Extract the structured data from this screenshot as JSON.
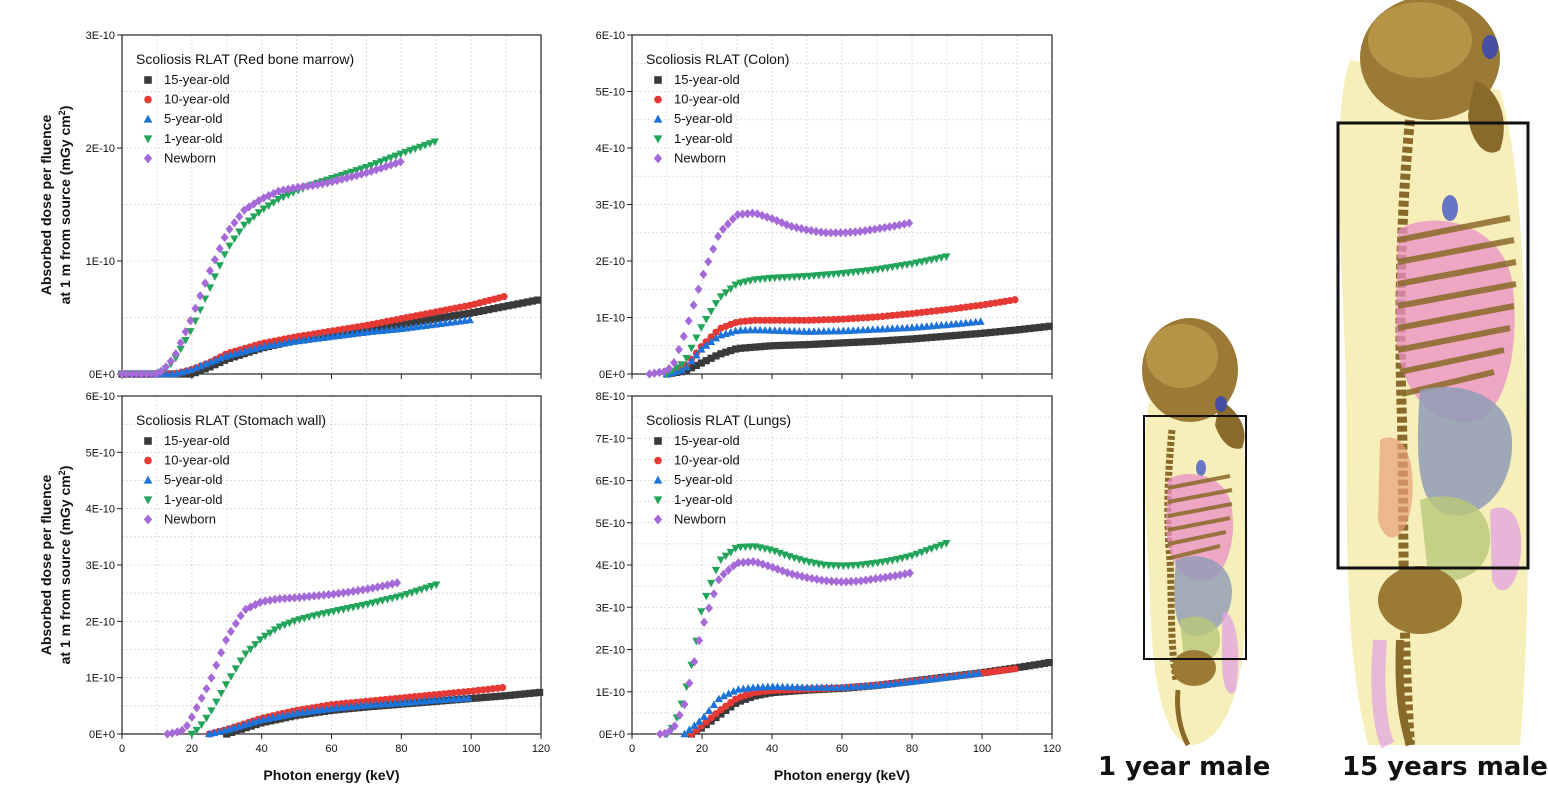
{
  "series_names": [
    "15-year-old",
    "10-year-old",
    "5-year-old",
    "1-year-old",
    "Newborn"
  ],
  "series_colors": [
    "#3a3a3a",
    "#e53935",
    "#1e73d8",
    "#22a45a",
    "#a66ad8"
  ],
  "series_markers": [
    "square",
    "circle",
    "triangle-up",
    "triangle-down",
    "diamond"
  ],
  "x_axis_label": "Photon energy (keV)",
  "y_axis_label_line1": "Absorbed dose per fluence",
  "y_axis_label_line2": "at 1 m from source (mGy cm",
  "y_axis_label_sup": "2",
  "y_axis_label_close": ")",
  "captions": {
    "left": "1 year male",
    "right": "15 years male"
  },
  "phantom_colors": {
    "skin": "#f3eaa3",
    "bone": "#8a6a2a",
    "lung": "#e98fc5",
    "organ": "#8f9bb5",
    "gut": "#b9c879",
    "box": "#111111"
  },
  "chart_data": [
    {
      "type": "scatter",
      "title": "Scoliosis RLAT (Red bone marrow)",
      "xlim": [
        0,
        120
      ],
      "ylim": [
        0,
        3e-10
      ],
      "xticks": [
        0,
        20,
        40,
        60,
        80,
        100,
        120
      ],
      "yticks": [
        0,
        1e-10,
        2e-10,
        3e-10
      ],
      "ytick_labels": [
        "0E+0",
        "1E-10",
        "2E-10",
        "3E-10"
      ],
      "series": [
        {
          "name": "15-year-old",
          "x": [
            0,
            15,
            20,
            25,
            30,
            40,
            50,
            60,
            70,
            80,
            90,
            100,
            110,
            120
          ],
          "values": [
            0,
            0,
            0,
            6e-12,
            1.3e-11,
            2.3e-11,
            3e-11,
            3.5e-11,
            4e-11,
            4.4e-11,
            4.9e-11,
            5.4e-11,
            6e-11,
            6.6e-11
          ]
        },
        {
          "name": "10-year-old",
          "x": [
            10,
            15,
            20,
            25,
            30,
            40,
            50,
            60,
            70,
            80,
            90,
            100,
            110
          ],
          "values": [
            0,
            0,
            4e-12,
            1e-11,
            1.8e-11,
            2.7e-11,
            3.3e-11,
            3.8e-11,
            4.3e-11,
            4.9e-11,
            5.5e-11,
            6.1e-11,
            6.9e-11
          ]
        },
        {
          "name": "5-year-old",
          "x": [
            10,
            15,
            20,
            25,
            30,
            40,
            50,
            60,
            70,
            80,
            90,
            100
          ],
          "values": [
            0,
            0,
            4e-12,
            1e-11,
            1.6e-11,
            2.4e-11,
            2.9e-11,
            3.3e-11,
            3.7e-11,
            4e-11,
            4.4e-11,
            4.8e-11
          ]
        },
        {
          "name": "1-year-old",
          "x": [
            0,
            5,
            10,
            12,
            15,
            20,
            25,
            30,
            35,
            40,
            45,
            50,
            55,
            60,
            70,
            80,
            90
          ],
          "values": [
            0,
            0,
            0,
            3e-12,
            1.2e-11,
            4e-11,
            7.5e-11,
            1.1e-10,
            1.32e-10,
            1.45e-10,
            1.55e-10,
            1.62e-10,
            1.68e-10,
            1.73e-10,
            1.83e-10,
            1.95e-10,
            2.06e-10
          ]
        },
        {
          "name": "Newborn",
          "x": [
            0,
            5,
            10,
            12,
            15,
            20,
            25,
            30,
            35,
            40,
            45,
            50,
            55,
            60,
            65,
            70,
            75,
            80
          ],
          "values": [
            0,
            0,
            0,
            4e-12,
            1.5e-11,
            5e-11,
            9e-11,
            1.25e-10,
            1.45e-10,
            1.55e-10,
            1.62e-10,
            1.65e-10,
            1.67e-10,
            1.7e-10,
            1.74e-10,
            1.78e-10,
            1.83e-10,
            1.88e-10
          ]
        }
      ]
    },
    {
      "type": "scatter",
      "title": "Scoliosis RLAT (Colon)",
      "xlim": [
        0,
        120
      ],
      "ylim": [
        0,
        6e-10
      ],
      "xticks": [
        0,
        20,
        40,
        60,
        80,
        100,
        120
      ],
      "yticks": [
        0,
        1e-10,
        2e-10,
        3e-10,
        4e-10,
        5e-10,
        6e-10
      ],
      "ytick_labels": [
        "0E+0",
        "1E-10",
        "2E-10",
        "3E-10",
        "4E-10",
        "5E-10",
        "6E-10"
      ],
      "series": [
        {
          "name": "15-year-old",
          "x": [
            10,
            15,
            20,
            25,
            30,
            40,
            50,
            60,
            70,
            80,
            90,
            100,
            110,
            120
          ],
          "values": [
            0,
            5e-12,
            2e-11,
            3.5e-11,
            4.5e-11,
            5e-11,
            5.2e-11,
            5.5e-11,
            5.8e-11,
            6.2e-11,
            6.7e-11,
            7.2e-11,
            7.8e-11,
            8.5e-11
          ]
        },
        {
          "name": "10-year-old",
          "x": [
            10,
            15,
            20,
            25,
            30,
            35,
            40,
            50,
            60,
            70,
            80,
            90,
            100,
            110
          ],
          "values": [
            0,
            1e-11,
            5e-11,
            8e-11,
            9.2e-11,
            9.5e-11,
            9.5e-11,
            9.5e-11,
            9.7e-11,
            1.01e-10,
            1.07e-10,
            1.14e-10,
            1.22e-10,
            1.32e-10
          ]
        },
        {
          "name": "5-year-old",
          "x": [
            10,
            15,
            20,
            25,
            30,
            35,
            40,
            50,
            60,
            70,
            80,
            90,
            100
          ],
          "values": [
            0,
            8e-12,
            4.5e-11,
            6.8e-11,
            7.7e-11,
            7.8e-11,
            7.7e-11,
            7.5e-11,
            7.6e-11,
            7.9e-11,
            8.2e-11,
            8.7e-11,
            9.3e-11
          ]
        },
        {
          "name": "1-year-old",
          "x": [
            10,
            15,
            20,
            25,
            30,
            35,
            40,
            50,
            60,
            70,
            80,
            90
          ],
          "values": [
            0,
            2e-11,
            8.5e-11,
            1.35e-10,
            1.6e-10,
            1.67e-10,
            1.7e-10,
            1.73e-10,
            1.78e-10,
            1.85e-10,
            1.95e-10,
            2.08e-10
          ]
        },
        {
          "name": "Newborn",
          "x": [
            5,
            10,
            12,
            15,
            20,
            25,
            30,
            35,
            40,
            45,
            50,
            55,
            60,
            65,
            70,
            75,
            80
          ],
          "values": [
            0,
            5e-12,
            2e-11,
            7e-11,
            1.7e-10,
            2.5e-10,
            2.82e-10,
            2.85e-10,
            2.75e-10,
            2.62e-10,
            2.55e-10,
            2.5e-10,
            2.5e-10,
            2.52e-10,
            2.57e-10,
            2.62e-10,
            2.68e-10
          ]
        }
      ]
    },
    {
      "type": "scatter",
      "title": "Scoliosis RLAT (Stomach wall)",
      "xlim": [
        0,
        120
      ],
      "ylim": [
        0,
        6e-10
      ],
      "xticks": [
        0,
        20,
        40,
        60,
        80,
        100,
        120
      ],
      "yticks": [
        0,
        1e-10,
        2e-10,
        3e-10,
        4e-10,
        5e-10,
        6e-10
      ],
      "ytick_labels": [
        "0E+0",
        "1E-10",
        "2E-10",
        "3E-10",
        "4E-10",
        "5E-10",
        "6E-10"
      ],
      "series": [
        {
          "name": "15-year-old",
          "x": [
            30,
            35,
            40,
            50,
            60,
            70,
            80,
            90,
            100,
            110,
            120
          ],
          "values": [
            0,
            1e-11,
            2e-11,
            3.3e-11,
            4.2e-11,
            4.8e-11,
            5.3e-11,
            5.8e-11,
            6.3e-11,
            6.8e-11,
            7.4e-11
          ]
        },
        {
          "name": "10-year-old",
          "x": [
            25,
            30,
            35,
            40,
            50,
            60,
            70,
            80,
            90,
            100,
            110
          ],
          "values": [
            0,
            8e-12,
            1.8e-11,
            2.8e-11,
            4.2e-11,
            5.2e-11,
            5.8e-11,
            6.4e-11,
            7e-11,
            7.6e-11,
            8.3e-11
          ]
        },
        {
          "name": "5-year-old",
          "x": [
            25,
            30,
            35,
            40,
            50,
            60,
            70,
            80,
            90,
            100
          ],
          "values": [
            0,
            7e-12,
            1.6e-11,
            2.5e-11,
            3.7e-11,
            4.5e-11,
            5.1e-11,
            5.5e-11,
            6e-11,
            6.4e-11
          ]
        },
        {
          "name": "1-year-old",
          "x": [
            20,
            22,
            25,
            30,
            35,
            40,
            45,
            50,
            55,
            60,
            70,
            80,
            90
          ],
          "values": [
            0,
            1e-11,
            3.5e-11,
            9e-11,
            1.4e-10,
            1.7e-10,
            1.9e-10,
            2.02e-10,
            2.1e-10,
            2.17e-10,
            2.3e-10,
            2.45e-10,
            2.65e-10
          ]
        },
        {
          "name": "Newborn",
          "x": [
            13,
            15,
            18,
            20,
            25,
            30,
            35,
            40,
            45,
            50,
            55,
            60,
            65,
            70,
            75,
            80
          ],
          "values": [
            0,
            2e-12,
            8e-12,
            3e-11,
            9e-11,
            1.7e-10,
            2.2e-10,
            2.35e-10,
            2.4e-10,
            2.42e-10,
            2.45e-10,
            2.48e-10,
            2.52e-10,
            2.57e-10,
            2.63e-10,
            2.7e-10
          ]
        }
      ]
    },
    {
      "type": "scatter",
      "title": "Scoliosis RLAT (Lungs)",
      "xlim": [
        0,
        120
      ],
      "ylim": [
        0,
        8e-10
      ],
      "xticks": [
        0,
        20,
        40,
        60,
        80,
        100,
        120
      ],
      "xtick_labels": [
        "0",
        "20",
        "40",
        "60",
        "80",
        "100",
        "120"
      ],
      "yticks": [
        0,
        1e-10,
        2e-10,
        3e-10,
        4e-10,
        5e-10,
        6e-10,
        7e-10,
        8e-10
      ],
      "ytick_labels": [
        "0E+0",
        "1E-10",
        "2E-10",
        "3E-10",
        "4E-10",
        "5E-10",
        "6E-10",
        "7E-10",
        "8E-10"
      ],
      "series": [
        {
          "name": "15-year-old",
          "x": [
            17,
            20,
            25,
            30,
            35,
            40,
            50,
            60,
            70,
            80,
            90,
            100,
            110,
            120
          ],
          "values": [
            0,
            1.5e-11,
            4.5e-11,
            7.5e-11,
            9e-11,
            9.8e-11,
            1.04e-10,
            1.08e-10,
            1.15e-10,
            1.25e-10,
            1.35e-10,
            1.45e-10,
            1.57e-10,
            1.7e-10
          ]
        },
        {
          "name": "10-year-old",
          "x": [
            17,
            20,
            25,
            30,
            35,
            40,
            50,
            60,
            70,
            80,
            90,
            100,
            110
          ],
          "values": [
            0,
            2e-11,
            5.5e-11,
            8.5e-11,
            9.8e-11,
            1.03e-10,
            1.06e-10,
            1.09e-10,
            1.15e-10,
            1.24e-10,
            1.34e-10,
            1.44e-10,
            1.55e-10
          ]
        },
        {
          "name": "5-year-old",
          "x": [
            15,
            20,
            25,
            30,
            35,
            40,
            50,
            60,
            70,
            80,
            90,
            100
          ],
          "values": [
            0,
            3.5e-11,
            8.5e-11,
            1.05e-10,
            1.1e-10,
            1.12e-10,
            1.1e-10,
            1.1e-10,
            1.15e-10,
            1.24e-10,
            1.34e-10,
            1.45e-10
          ]
        },
        {
          "name": "1-year-old",
          "x": [
            10,
            12,
            15,
            18,
            20,
            25,
            30,
            35,
            40,
            45,
            50,
            55,
            60,
            65,
            70,
            75,
            80,
            90
          ],
          "values": [
            0,
            2e-11,
            9e-11,
            2e-10,
            3e-10,
            4.1e-10,
            4.42e-10,
            4.44e-10,
            4.35e-10,
            4.2e-10,
            4.08e-10,
            4e-10,
            3.98e-10,
            4e-10,
            4.05e-10,
            4.12e-10,
            4.22e-10,
            4.52e-10
          ]
        },
        {
          "name": "Newborn",
          "x": [
            8,
            10,
            12,
            15,
            20,
            25,
            30,
            35,
            40,
            45,
            50,
            55,
            60,
            65,
            70,
            75,
            80
          ],
          "values": [
            0,
            2e-12,
            1.5e-11,
            7e-11,
            2.5e-10,
            3.7e-10,
            4.05e-10,
            4.08e-10,
            3.95e-10,
            3.8e-10,
            3.7e-10,
            3.63e-10,
            3.6e-10,
            3.62e-10,
            3.68e-10,
            3.74e-10,
            3.82e-10
          ]
        }
      ]
    }
  ]
}
